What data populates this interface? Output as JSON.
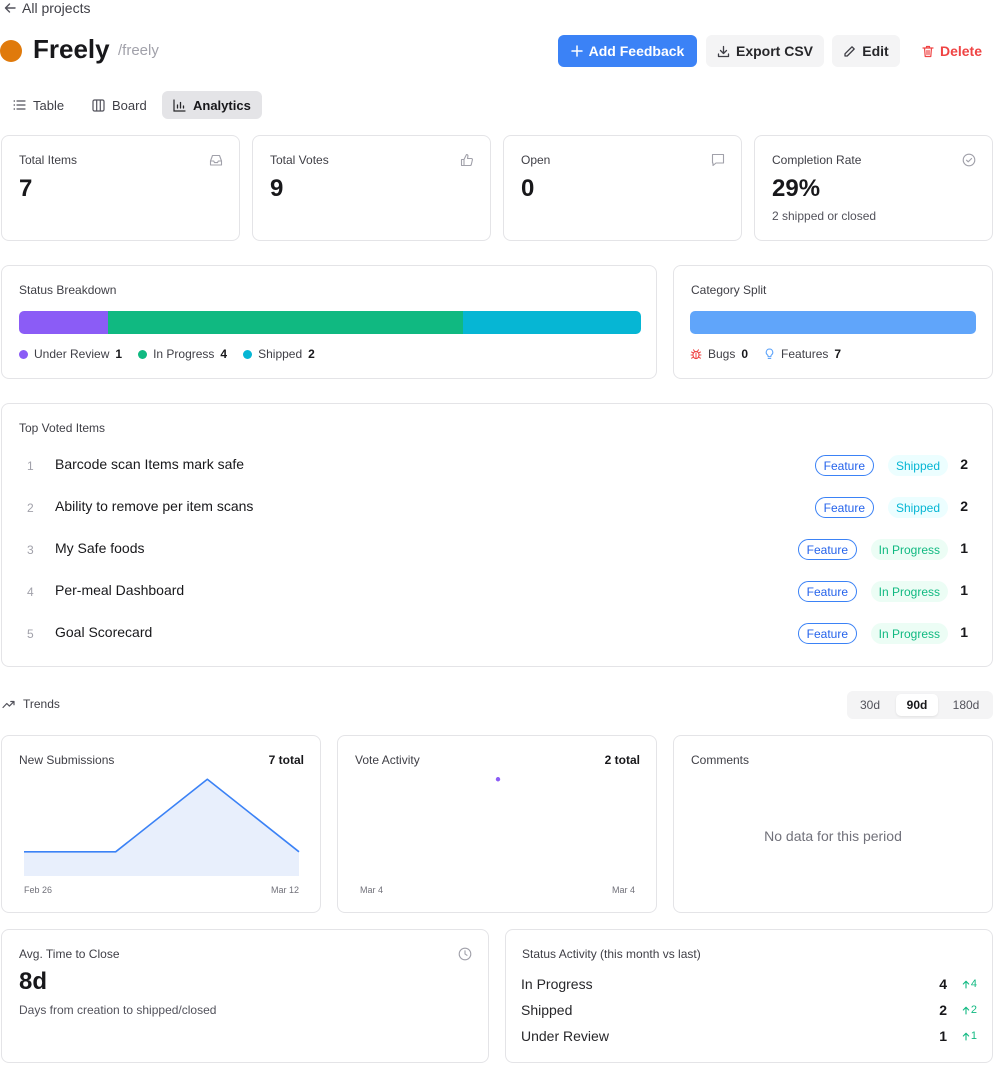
{
  "header": {
    "back_label": "All projects",
    "project_name": "Freely",
    "project_slug": "/freely",
    "project_color": "#e07a0b",
    "buttons": {
      "add_feedback": "Add Feedback",
      "export_csv": "Export CSV",
      "edit": "Edit",
      "delete": "Delete"
    }
  },
  "tabs": [
    {
      "label": "Table",
      "icon": "list-icon",
      "active": false
    },
    {
      "label": "Board",
      "icon": "columns-icon",
      "active": false
    },
    {
      "label": "Analytics",
      "icon": "bar-chart-icon",
      "active": true
    }
  ],
  "stats": [
    {
      "label": "Total Items",
      "value": "7",
      "icon": "inbox-icon"
    },
    {
      "label": "Total Votes",
      "value": "9",
      "icon": "thumbs-up-icon"
    },
    {
      "label": "Open",
      "value": "0",
      "icon": "message-icon"
    },
    {
      "label": "Completion Rate",
      "value": "29%",
      "sub": "2 shipped or closed",
      "icon": "check-circle-icon"
    }
  ],
  "status_breakdown": {
    "title": "Status Breakdown",
    "segments": [
      {
        "label": "Under Review",
        "count": 1,
        "color": "#8b5cf6"
      },
      {
        "label": "In Progress",
        "count": 4,
        "color": "#10b981"
      },
      {
        "label": "Shipped",
        "count": 2,
        "color": "#06b6d4"
      }
    ]
  },
  "category_split": {
    "title": "Category Split",
    "bar_color": "#60a5fa",
    "items": [
      {
        "label": "Bugs",
        "count": "0",
        "icon": "bug-icon",
        "icon_color": "#ef4444"
      },
      {
        "label": "Features",
        "count": "7",
        "icon": "lightbulb-icon",
        "icon_color": "#60a5fa"
      }
    ]
  },
  "top_voted": {
    "title": "Top Voted Items",
    "items": [
      {
        "rank": "1",
        "title": "Barcode scan Items mark safe",
        "category": "Feature",
        "status": "Shipped",
        "votes": "2"
      },
      {
        "rank": "2",
        "title": "Ability to remove per item scans",
        "category": "Feature",
        "status": "Shipped",
        "votes": "2"
      },
      {
        "rank": "3",
        "title": "My Safe foods",
        "category": "Feature",
        "status": "In Progress",
        "votes": "1"
      },
      {
        "rank": "4",
        "title": "Per-meal Dashboard",
        "category": "Feature",
        "status": "In Progress",
        "votes": "1"
      },
      {
        "rank": "5",
        "title": "Goal Scorecard",
        "category": "Feature",
        "status": "In Progress",
        "votes": "1"
      }
    ]
  },
  "trends": {
    "title": "Trends",
    "ranges": [
      "30d",
      "90d",
      "180d"
    ],
    "active_range": "90d"
  },
  "chart_data": [
    {
      "type": "area",
      "title": "New Submissions",
      "total_label": "7 total",
      "x": [
        "Feb 26",
        "",
        "",
        "Mar 12"
      ],
      "values": [
        1,
        1,
        4,
        1
      ],
      "ylim": [
        0,
        4.3
      ],
      "tick_labels": [
        "Feb 26",
        "Mar 12"
      ],
      "color": "#3b82f6",
      "fill": "#e8effc"
    },
    {
      "type": "line",
      "title": "Vote Activity",
      "total_label": "2 total",
      "x": [
        "Mar 4"
      ],
      "values": [
        2
      ],
      "ylim": [
        0,
        2.15
      ],
      "tick_labels": [
        "Mar 4",
        "Mar 4"
      ],
      "color": "#8b5cf6"
    }
  ],
  "comments": {
    "title": "Comments",
    "empty_text": "No data for this period"
  },
  "avg_close": {
    "title": "Avg. Time to Close",
    "value": "8d",
    "sub": "Days from creation to shipped/closed"
  },
  "status_activity": {
    "title": "Status Activity (this month vs last)",
    "rows": [
      {
        "label": "In Progress",
        "count": "4",
        "delta": "4"
      },
      {
        "label": "Shipped",
        "count": "2",
        "delta": "2"
      },
      {
        "label": "Under Review",
        "count": "1",
        "delta": "1"
      }
    ]
  }
}
